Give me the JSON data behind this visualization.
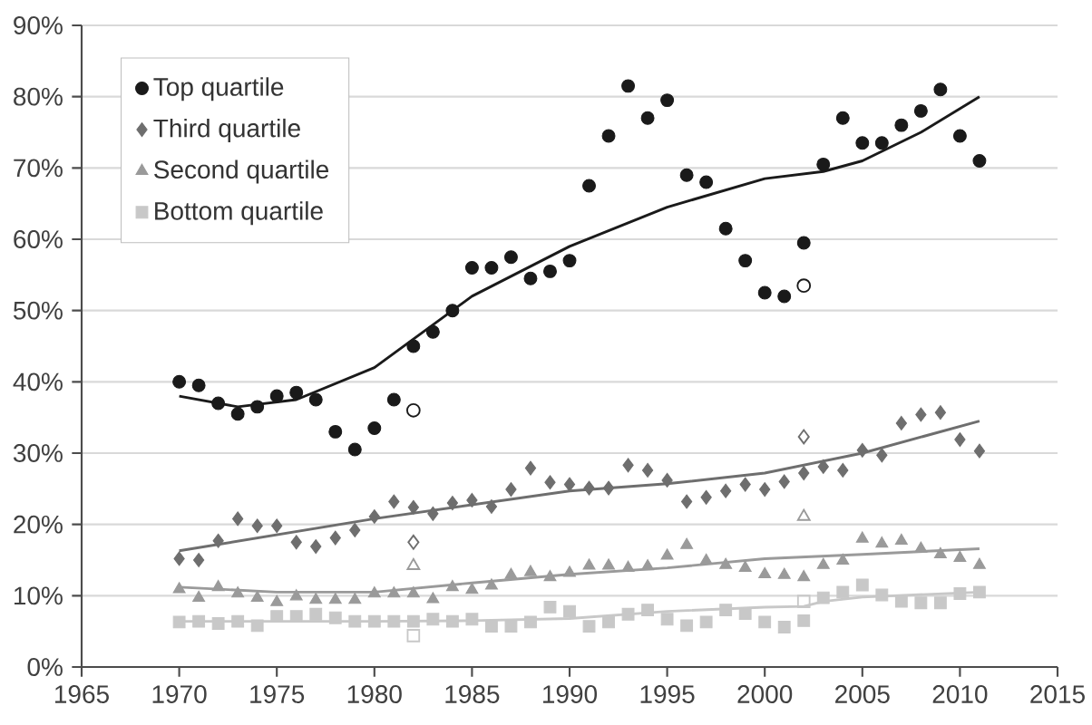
{
  "chart_data": {
    "type": "scatter",
    "xlim": [
      1965,
      2015
    ],
    "ylim": [
      0,
      90
    ],
    "xticks": [
      1965,
      1970,
      1975,
      1980,
      1985,
      1990,
      1995,
      2000,
      2005,
      2010,
      2015
    ],
    "yticks": [
      {
        "value": 0,
        "label": "0%"
      },
      {
        "value": 10,
        "label": "10%"
      },
      {
        "value": 20,
        "label": "20%"
      },
      {
        "value": 30,
        "label": "30%"
      },
      {
        "value": 40,
        "label": "40%"
      },
      {
        "value": 50,
        "label": "50%"
      },
      {
        "value": 60,
        "label": "60%"
      },
      {
        "value": 70,
        "label": "70%"
      },
      {
        "value": 80,
        "label": "80%"
      },
      {
        "value": 90,
        "label": "90%"
      }
    ],
    "grid": "y",
    "legend": "top left",
    "x": [
      1970,
      1971,
      1972,
      1973,
      1974,
      1975,
      1976,
      1977,
      1978,
      1979,
      1980,
      1981,
      1982,
      1983,
      1984,
      1985,
      1986,
      1987,
      1988,
      1989,
      1990,
      1991,
      1992,
      1993,
      1994,
      1995,
      1996,
      1997,
      1998,
      1999,
      2000,
      2001,
      2002,
      2003,
      2004,
      2005,
      2006,
      2007,
      2008,
      2009,
      2010,
      2011
    ],
    "series": [
      {
        "name": "Top quartile",
        "color": "#1a1a1a",
        "marker": "circle",
        "values": [
          40,
          39.5,
          37,
          35.5,
          36.5,
          38,
          38.5,
          37.5,
          33,
          30.5,
          33.5,
          37.5,
          45,
          47,
          50,
          56,
          56,
          57.5,
          54.5,
          55.5,
          57,
          67.5,
          74.5,
          81.5,
          77,
          79.5,
          69,
          68,
          61.5,
          57,
          52.5,
          52,
          59.5,
          70.5,
          77,
          73.5,
          73.5,
          76,
          78,
          81,
          74.5,
          71
        ]
      },
      {
        "name": "Third quartile",
        "color": "#6e6e6e",
        "marker": "diamond",
        "values": [
          15.2,
          15,
          17.7,
          20.8,
          19.8,
          19.8,
          17.5,
          16.9,
          18.1,
          19.2,
          21.1,
          23.2,
          22.4,
          21.5,
          23,
          23.4,
          22.5,
          24.9,
          27.9,
          25.9,
          25.6,
          25.1,
          25.1,
          28.3,
          27.6,
          26.2,
          23.2,
          23.8,
          24.7,
          25.6,
          24.9,
          26,
          27.2,
          28.1,
          27.6,
          30.4,
          29.7,
          34.2,
          35.4,
          35.7,
          31.9,
          30.3
        ]
      },
      {
        "name": "Second quartile",
        "color": "#9a9a9a",
        "marker": "triangle",
        "values": [
          10.9,
          9.7,
          11.2,
          10.3,
          9.7,
          9.1,
          9.9,
          9.4,
          9.4,
          9.4,
          10.3,
          10.3,
          10.3,
          9.5,
          11.2,
          10.8,
          11.4,
          12.9,
          13.3,
          12.6,
          13.2,
          14.2,
          14.2,
          13.9,
          14.1,
          15.6,
          17.1,
          14.9,
          14.3,
          13.9,
          13,
          12.9,
          12.6,
          14.3,
          14.9,
          18,
          17.3,
          17.7,
          16.6,
          15.8,
          15.3,
          14.3
        ]
      },
      {
        "name": "Bottom quartile",
        "color": "#c8c8c8",
        "marker": "square",
        "values": [
          6.3,
          6.4,
          6.1,
          6.4,
          5.8,
          7.1,
          7.1,
          7.4,
          6.9,
          6.4,
          6.4,
          6.4,
          6.4,
          6.7,
          6.4,
          6.7,
          5.7,
          5.7,
          6.3,
          8.4,
          7.8,
          5.7,
          6.3,
          7.4,
          8,
          6.7,
          5.8,
          6.3,
          8,
          7.5,
          6.3,
          5.6,
          6.5,
          9.7,
          10.5,
          11.5,
          10.1,
          9.2,
          9,
          9,
          10.3,
          10.5
        ]
      },
      {
        "type": "scatter",
        "color": "#1a1a1a",
        "marker": "circle",
        "x": [
          1982,
          2002
        ],
        "values": [
          36,
          53.5
        ]
      },
      {
        "type": "scatter",
        "color": "#6e6e6e",
        "marker": "diamond",
        "x": [
          1982,
          2002
        ],
        "values": [
          17.5,
          32.3
        ]
      },
      {
        "type": "scatter",
        "color": "#9a9a9a",
        "marker": "triangle",
        "x": [
          1982,
          2002
        ],
        "values": [
          14.2,
          21.1
        ]
      },
      {
        "type": "scatter",
        "color": "#c8c8c8",
        "marker": "square",
        "x": [
          1982,
          2002
        ],
        "values": [
          4.4,
          9.2
        ]
      },
      {
        "type": "line",
        "color": "#1a1a1a",
        "x": [
          1970,
          1973,
          1976,
          1980,
          1985,
          1990,
          1995,
          2000,
          2003,
          2005,
          2008,
          2011
        ],
        "values": [
          38,
          36.5,
          37.5,
          42,
          52,
          59,
          64.5,
          68.5,
          69.5,
          71,
          75,
          80
        ]
      },
      {
        "type": "line",
        "color": "#6e6e6e",
        "x": [
          1970,
          1980,
          1990,
          1995,
          2000,
          2005,
          2011
        ],
        "values": [
          16.3,
          20.8,
          24.7,
          25.7,
          27.2,
          30,
          34.5
        ]
      },
      {
        "type": "line",
        "color": "#9a9a9a",
        "x": [
          1970,
          1975,
          1980,
          1985,
          1990,
          1995,
          2000,
          2005,
          2011
        ],
        "values": [
          11.2,
          10.5,
          10.5,
          11.8,
          13,
          13.9,
          15.2,
          15.8,
          16.6
        ]
      },
      {
        "type": "line",
        "color": "#c8c8c8",
        "x": [
          1970,
          1980,
          1985,
          1990,
          1995,
          2000,
          2002,
          2003,
          2005,
          2011
        ],
        "values": [
          6.4,
          6.4,
          6.5,
          6.8,
          7.8,
          8.4,
          8.5,
          9.2,
          9.8,
          10.5
        ]
      }
    ]
  }
}
